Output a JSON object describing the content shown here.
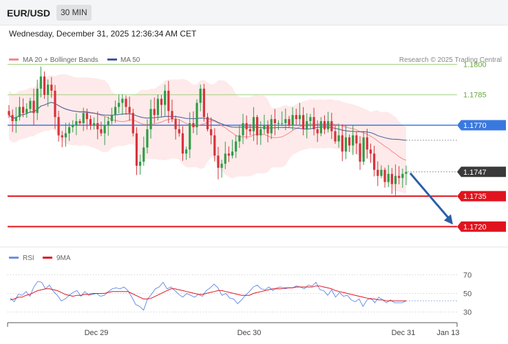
{
  "header": {
    "symbol": "EUR/USD",
    "timeframe": "30 MIN",
    "datetime": "Wednesday, December 31, 2025 12:36:34 AM CET"
  },
  "legend": {
    "ma20_bb": "MA 20 + Bollinger Bands",
    "ma50": "MA 50",
    "credit": "Research © 2025 Trading Central"
  },
  "colors": {
    "candle_up": "#2e9d45",
    "candle_down": "#d6333a",
    "ma20": "#f28a8a",
    "ma50": "#3d5a99",
    "band_fill": "#fde3e3",
    "resistance": "#a4cf80",
    "pivot": "#3a78e0",
    "support": "#e0141e",
    "rsi": "#6a8fe6",
    "rsi_ma": "#e0141e",
    "arrow": "#2b5fa8"
  },
  "chart_data": [
    {
      "type": "candlestick",
      "ylim": [
        1.1712,
        1.181
      ],
      "levels": [
        {
          "label": "1.1800",
          "value": 1.18,
          "kind": "resistance"
        },
        {
          "label": "1.1785",
          "value": 1.1785,
          "kind": "resistance"
        },
        {
          "label": "1.1770",
          "value": 1.177,
          "kind": "pivot"
        },
        {
          "label": "1.1747",
          "value": 1.1747,
          "kind": "current"
        },
        {
          "label": "1.1735",
          "value": 1.1735,
          "kind": "support"
        },
        {
          "label": "1.1720",
          "value": 1.172,
          "kind": "support"
        }
      ],
      "x_ticks": [
        "Dec 29",
        "Dec 30",
        "Dec 31",
        "Jan 13"
      ],
      "close": [
        1.1775,
        1.1772,
        1.1774,
        1.1779,
        1.1776,
        1.1778,
        1.1782,
        1.1776,
        1.1788,
        1.1794,
        1.1785,
        1.179,
        1.1787,
        1.1774,
        1.1765,
        1.1764,
        1.1766,
        1.1769,
        1.177,
        1.1772,
        1.1771,
        1.1776,
        1.1773,
        1.177,
        1.1771,
        1.1768,
        1.1766,
        1.177,
        1.1772,
        1.1775,
        1.1779,
        1.1781,
        1.1783,
        1.1779,
        1.1776,
        1.1766,
        1.175,
        1.1752,
        1.1759,
        1.1768,
        1.1778,
        1.1775,
        1.1783,
        1.178,
        1.1787,
        1.1777,
        1.1773,
        1.1768,
        1.1766,
        1.1756,
        1.1758,
        1.1771,
        1.1769,
        1.1781,
        1.1788,
        1.1774,
        1.1768,
        1.1765,
        1.1755,
        1.1749,
        1.1751,
        1.1756,
        1.1755,
        1.1757,
        1.1762,
        1.1765,
        1.1771,
        1.1768,
        1.1767,
        1.1774,
        1.1765,
        1.1768,
        1.177,
        1.1766,
        1.1773,
        1.1771,
        1.1771,
        1.1771,
        1.1773,
        1.177,
        1.1775,
        1.1773,
        1.1775,
        1.1768,
        1.1772,
        1.1774,
        1.1768,
        1.1766,
        1.1772,
        1.1768,
        1.1772,
        1.1767,
        1.1762,
        1.1765,
        1.1757,
        1.1764,
        1.176,
        1.1765,
        1.1761,
        1.1752,
        1.1764,
        1.1758,
        1.1756,
        1.1748,
        1.1745,
        1.1748,
        1.1742,
        1.1746,
        1.1741,
        1.1745,
        1.1744,
        1.1746,
        1.1747
      ],
      "rsi": {
        "label": "RSI",
        "ma_label": "9MA",
        "ticks": [
          "70",
          "50",
          "30"
        ],
        "ylim": [
          20,
          80
        ],
        "values": [
          45,
          41,
          49,
          48,
          52,
          47,
          57,
          63,
          62,
          55,
          59,
          52,
          48,
          42,
          44,
          48,
          51,
          53,
          47,
          52,
          48,
          49,
          50,
          47,
          48,
          52,
          55,
          56,
          55,
          57,
          53,
          46,
          38,
          36,
          32,
          44,
          49,
          55,
          57,
          62,
          55,
          57,
          53,
          49,
          46,
          50,
          48,
          46,
          49,
          47,
          53,
          56,
          60,
          56,
          48,
          50,
          45,
          44,
          39,
          43,
          48,
          52,
          57,
          59,
          55,
          54,
          57,
          53,
          56,
          57,
          55,
          56,
          56,
          58,
          57,
          55,
          59,
          58,
          62,
          54,
          53,
          48,
          54,
          46,
          51,
          47,
          48,
          43,
          41,
          44,
          36,
          43,
          45,
          40,
          46,
          43,
          40,
          43,
          40,
          40,
          40,
          42
        ],
        "ma_values": [
          43,
          44,
          46,
          46,
          48,
          49,
          51,
          53,
          54,
          55,
          55,
          54,
          53,
          51,
          49,
          48,
          47,
          48,
          48,
          49,
          49,
          50,
          50,
          50,
          50,
          51,
          52,
          52,
          52,
          52,
          52,
          50,
          48,
          46,
          44,
          44,
          45,
          47,
          49,
          51,
          53,
          55,
          55,
          54,
          53,
          52,
          51,
          50,
          49,
          49,
          50,
          51,
          52,
          53,
          53,
          52,
          51,
          50,
          49,
          48,
          48,
          48,
          50,
          51,
          52,
          53,
          54,
          55,
          55,
          55,
          56,
          56,
          56,
          57,
          57,
          57,
          57,
          57,
          58,
          58,
          57,
          56,
          55,
          53,
          52,
          51,
          50,
          49,
          48,
          47,
          46,
          45,
          44,
          44,
          43,
          43,
          42,
          42,
          42,
          42,
          42,
          42
        ]
      }
    }
  ]
}
